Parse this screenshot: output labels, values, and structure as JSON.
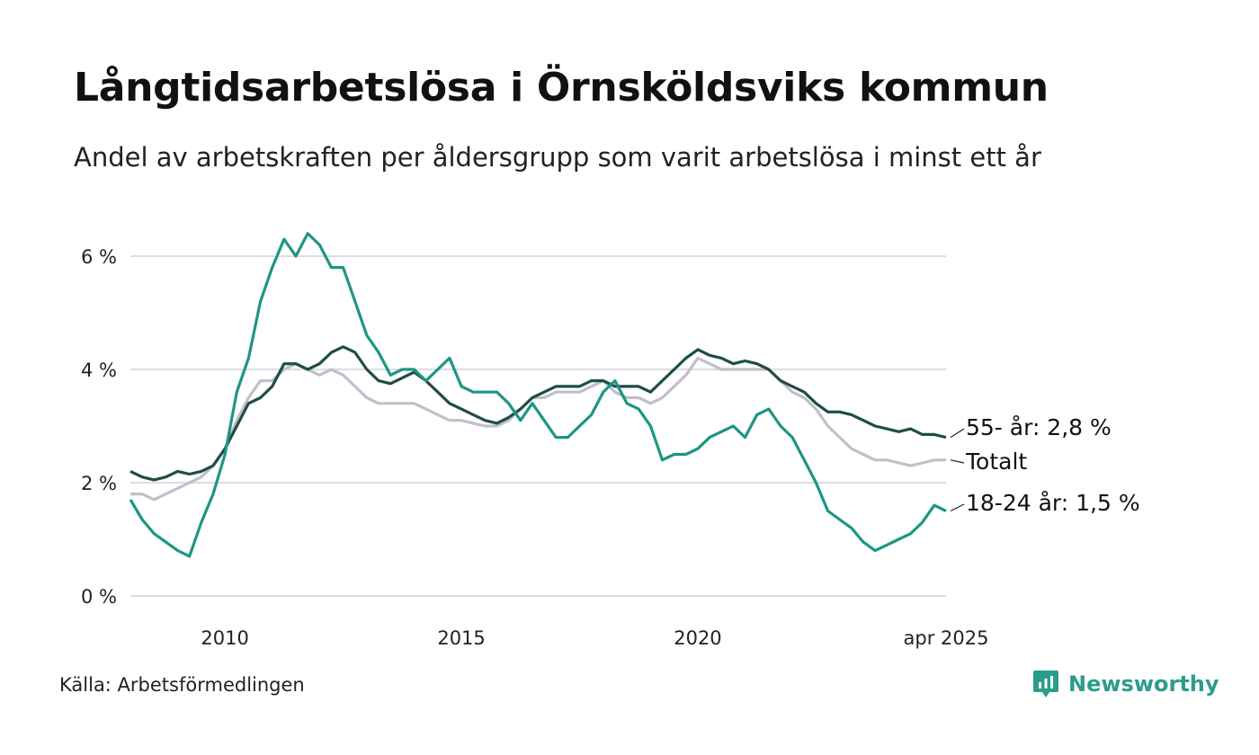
{
  "title": "Långtidsarbetslösa i Örnsköldsviks kommun",
  "subtitle": "Andel av arbetskraften per åldersgrupp som varit arbetslösa i minst ett år",
  "source": "Källa: Arbetsförmedlingen",
  "brand": {
    "name": "Newsworthy",
    "icon": "newsworthy-logo-icon",
    "color": "#2c9c8c"
  },
  "chart_data": {
    "type": "line",
    "x_range": [
      2008.0,
      2025.25
    ],
    "x_ticks": [
      {
        "value": 2010,
        "label": "2010"
      },
      {
        "value": 2015,
        "label": "2015"
      },
      {
        "value": 2020,
        "label": "2020"
      },
      {
        "value": 2025.25,
        "label": "apr 2025"
      }
    ],
    "y_range": [
      0,
      7
    ],
    "y_ticks": [
      {
        "value": 0,
        "label": "0 %"
      },
      {
        "value": 2,
        "label": "2 %"
      },
      {
        "value": 4,
        "label": "4 %"
      },
      {
        "value": 6,
        "label": "6 %"
      }
    ],
    "grid": "horizontal",
    "legend": "end-labels",
    "series": [
      {
        "name": "Totalt",
        "end_label": "Totalt",
        "color": "#c2bfcc",
        "points": [
          [
            2008.0,
            1.8
          ],
          [
            2008.25,
            1.8
          ],
          [
            2008.5,
            1.7
          ],
          [
            2008.75,
            1.8
          ],
          [
            2009.0,
            1.9
          ],
          [
            2009.25,
            2.0
          ],
          [
            2009.5,
            2.1
          ],
          [
            2009.75,
            2.3
          ],
          [
            2010.0,
            2.6
          ],
          [
            2010.25,
            3.1
          ],
          [
            2010.5,
            3.5
          ],
          [
            2010.75,
            3.8
          ],
          [
            2011.0,
            3.8
          ],
          [
            2011.25,
            4.0
          ],
          [
            2011.5,
            4.1
          ],
          [
            2011.75,
            4.0
          ],
          [
            2012.0,
            3.9
          ],
          [
            2012.25,
            4.0
          ],
          [
            2012.5,
            3.9
          ],
          [
            2012.75,
            3.7
          ],
          [
            2013.0,
            3.5
          ],
          [
            2013.25,
            3.4
          ],
          [
            2013.5,
            3.4
          ],
          [
            2013.75,
            3.4
          ],
          [
            2014.0,
            3.4
          ],
          [
            2014.25,
            3.3
          ],
          [
            2014.5,
            3.2
          ],
          [
            2014.75,
            3.1
          ],
          [
            2015.0,
            3.1
          ],
          [
            2015.25,
            3.05
          ],
          [
            2015.5,
            3.0
          ],
          [
            2015.75,
            3.0
          ],
          [
            2016.0,
            3.1
          ],
          [
            2016.25,
            3.3
          ],
          [
            2016.5,
            3.5
          ],
          [
            2016.75,
            3.5
          ],
          [
            2017.0,
            3.6
          ],
          [
            2017.25,
            3.6
          ],
          [
            2017.5,
            3.6
          ],
          [
            2017.75,
            3.7
          ],
          [
            2018.0,
            3.8
          ],
          [
            2018.25,
            3.6
          ],
          [
            2018.5,
            3.5
          ],
          [
            2018.75,
            3.5
          ],
          [
            2019.0,
            3.4
          ],
          [
            2019.25,
            3.5
          ],
          [
            2019.5,
            3.7
          ],
          [
            2019.75,
            3.9
          ],
          [
            2020.0,
            4.2
          ],
          [
            2020.25,
            4.1
          ],
          [
            2020.5,
            4.0
          ],
          [
            2020.75,
            4.0
          ],
          [
            2021.0,
            4.0
          ],
          [
            2021.25,
            4.0
          ],
          [
            2021.5,
            4.0
          ],
          [
            2021.75,
            3.8
          ],
          [
            2022.0,
            3.6
          ],
          [
            2022.25,
            3.5
          ],
          [
            2022.5,
            3.3
          ],
          [
            2022.75,
            3.0
          ],
          [
            2023.0,
            2.8
          ],
          [
            2023.25,
            2.6
          ],
          [
            2023.5,
            2.5
          ],
          [
            2023.75,
            2.4
          ],
          [
            2024.0,
            2.4
          ],
          [
            2024.25,
            2.35
          ],
          [
            2024.5,
            2.3
          ],
          [
            2024.75,
            2.35
          ],
          [
            2025.0,
            2.4
          ],
          [
            2025.25,
            2.4
          ]
        ]
      },
      {
        "name": "55- år",
        "end_label": "55- år: 2,8 %",
        "color": "#1f4d45",
        "points": [
          [
            2008.0,
            2.2
          ],
          [
            2008.25,
            2.1
          ],
          [
            2008.5,
            2.05
          ],
          [
            2008.75,
            2.1
          ],
          [
            2009.0,
            2.2
          ],
          [
            2009.25,
            2.15
          ],
          [
            2009.5,
            2.2
          ],
          [
            2009.75,
            2.3
          ],
          [
            2010.0,
            2.6
          ],
          [
            2010.25,
            3.0
          ],
          [
            2010.5,
            3.4
          ],
          [
            2010.75,
            3.5
          ],
          [
            2011.0,
            3.7
          ],
          [
            2011.25,
            4.1
          ],
          [
            2011.5,
            4.1
          ],
          [
            2011.75,
            4.0
          ],
          [
            2012.0,
            4.1
          ],
          [
            2012.25,
            4.3
          ],
          [
            2012.5,
            4.4
          ],
          [
            2012.75,
            4.3
          ],
          [
            2013.0,
            4.0
          ],
          [
            2013.25,
            3.8
          ],
          [
            2013.5,
            3.75
          ],
          [
            2013.75,
            3.85
          ],
          [
            2014.0,
            3.95
          ],
          [
            2014.25,
            3.8
          ],
          [
            2014.5,
            3.6
          ],
          [
            2014.75,
            3.4
          ],
          [
            2015.0,
            3.3
          ],
          [
            2015.25,
            3.2
          ],
          [
            2015.5,
            3.1
          ],
          [
            2015.75,
            3.05
          ],
          [
            2016.0,
            3.15
          ],
          [
            2016.25,
            3.3
          ],
          [
            2016.5,
            3.5
          ],
          [
            2016.75,
            3.6
          ],
          [
            2017.0,
            3.7
          ],
          [
            2017.25,
            3.7
          ],
          [
            2017.5,
            3.7
          ],
          [
            2017.75,
            3.8
          ],
          [
            2018.0,
            3.8
          ],
          [
            2018.25,
            3.7
          ],
          [
            2018.5,
            3.7
          ],
          [
            2018.75,
            3.7
          ],
          [
            2019.0,
            3.6
          ],
          [
            2019.25,
            3.8
          ],
          [
            2019.5,
            4.0
          ],
          [
            2019.75,
            4.2
          ],
          [
            2020.0,
            4.35
          ],
          [
            2020.25,
            4.25
          ],
          [
            2020.5,
            4.2
          ],
          [
            2020.75,
            4.1
          ],
          [
            2021.0,
            4.15
          ],
          [
            2021.25,
            4.1
          ],
          [
            2021.5,
            4.0
          ],
          [
            2021.75,
            3.8
          ],
          [
            2022.0,
            3.7
          ],
          [
            2022.25,
            3.6
          ],
          [
            2022.5,
            3.4
          ],
          [
            2022.75,
            3.25
          ],
          [
            2023.0,
            3.25
          ],
          [
            2023.25,
            3.2
          ],
          [
            2023.5,
            3.1
          ],
          [
            2023.75,
            3.0
          ],
          [
            2024.0,
            2.95
          ],
          [
            2024.25,
            2.9
          ],
          [
            2024.5,
            2.95
          ],
          [
            2024.75,
            2.85
          ],
          [
            2025.0,
            2.85
          ],
          [
            2025.25,
            2.8
          ]
        ]
      },
      {
        "name": "18-24 år",
        "end_label": "18-24 år: 1,5 %",
        "color": "#1d9684",
        "points": [
          [
            2008.0,
            1.7
          ],
          [
            2008.25,
            1.35
          ],
          [
            2008.5,
            1.1
          ],
          [
            2008.75,
            0.95
          ],
          [
            2009.0,
            0.8
          ],
          [
            2009.25,
            0.7
          ],
          [
            2009.5,
            1.3
          ],
          [
            2009.75,
            1.8
          ],
          [
            2010.0,
            2.5
          ],
          [
            2010.25,
            3.6
          ],
          [
            2010.5,
            4.2
          ],
          [
            2010.75,
            5.2
          ],
          [
            2011.0,
            5.8
          ],
          [
            2011.25,
            6.3
          ],
          [
            2011.5,
            6.0
          ],
          [
            2011.75,
            6.4
          ],
          [
            2012.0,
            6.2
          ],
          [
            2012.25,
            5.8
          ],
          [
            2012.5,
            5.8
          ],
          [
            2012.75,
            5.2
          ],
          [
            2013.0,
            4.6
          ],
          [
            2013.25,
            4.3
          ],
          [
            2013.5,
            3.9
          ],
          [
            2013.75,
            4.0
          ],
          [
            2014.0,
            4.0
          ],
          [
            2014.25,
            3.8
          ],
          [
            2014.5,
            4.0
          ],
          [
            2014.75,
            4.2
          ],
          [
            2015.0,
            3.7
          ],
          [
            2015.25,
            3.6
          ],
          [
            2015.5,
            3.6
          ],
          [
            2015.75,
            3.6
          ],
          [
            2016.0,
            3.4
          ],
          [
            2016.25,
            3.1
          ],
          [
            2016.5,
            3.4
          ],
          [
            2016.75,
            3.1
          ],
          [
            2017.0,
            2.8
          ],
          [
            2017.25,
            2.8
          ],
          [
            2017.5,
            3.0
          ],
          [
            2017.75,
            3.2
          ],
          [
            2018.0,
            3.6
          ],
          [
            2018.25,
            3.8
          ],
          [
            2018.5,
            3.4
          ],
          [
            2018.75,
            3.3
          ],
          [
            2019.0,
            3.0
          ],
          [
            2019.25,
            2.4
          ],
          [
            2019.5,
            2.5
          ],
          [
            2019.75,
            2.5
          ],
          [
            2020.0,
            2.6
          ],
          [
            2020.25,
            2.8
          ],
          [
            2020.5,
            2.9
          ],
          [
            2020.75,
            3.0
          ],
          [
            2021.0,
            2.8
          ],
          [
            2021.25,
            3.2
          ],
          [
            2021.5,
            3.3
          ],
          [
            2021.75,
            3.0
          ],
          [
            2022.0,
            2.8
          ],
          [
            2022.25,
            2.4
          ],
          [
            2022.5,
            2.0
          ],
          [
            2022.75,
            1.5
          ],
          [
            2023.0,
            1.35
          ],
          [
            2023.25,
            1.2
          ],
          [
            2023.5,
            0.95
          ],
          [
            2023.75,
            0.8
          ],
          [
            2024.0,
            0.9
          ],
          [
            2024.25,
            1.0
          ],
          [
            2024.5,
            1.1
          ],
          [
            2024.75,
            1.3
          ],
          [
            2025.0,
            1.6
          ],
          [
            2025.25,
            1.5
          ]
        ]
      }
    ]
  }
}
